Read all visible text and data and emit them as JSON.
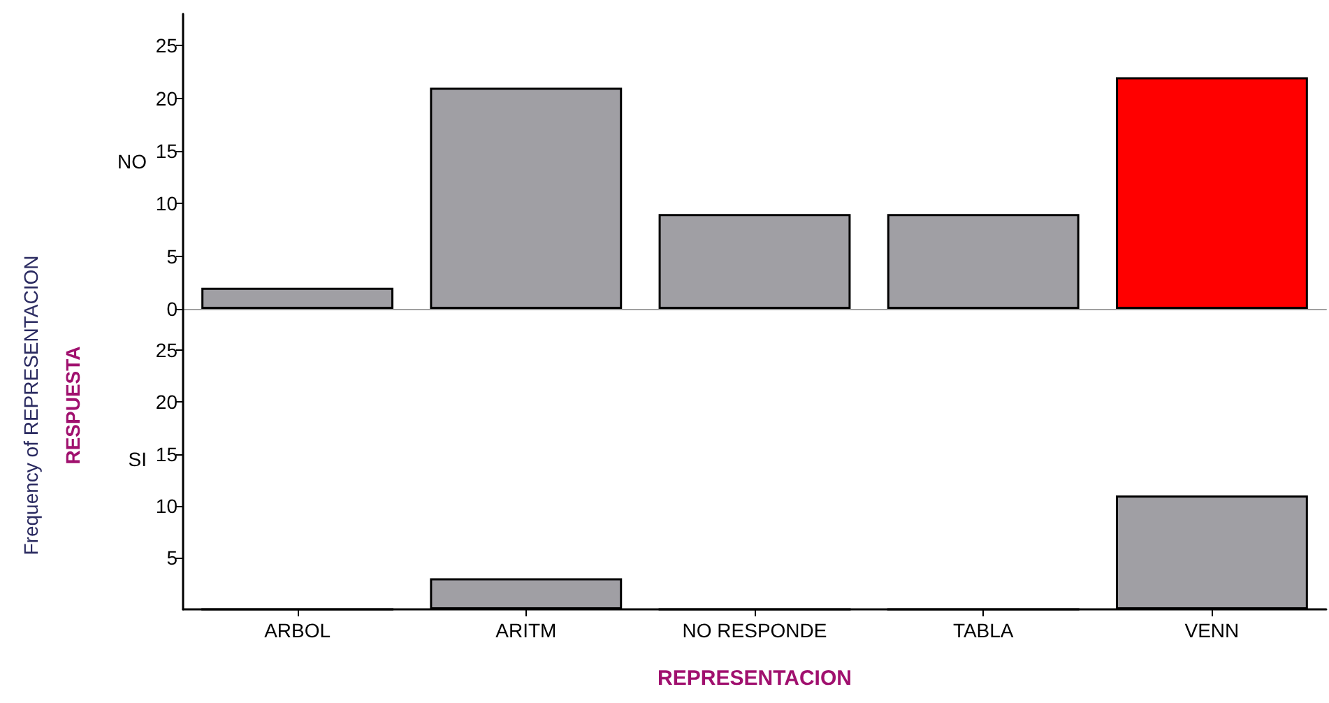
{
  "chart_data": [
    {
      "type": "bar",
      "ylabel": "NO",
      "categories": [
        null,
        null,
        null,
        null,
        null
      ],
      "values": [
        2,
        21,
        9,
        9,
        22
      ],
      "colors": [
        "#a09fa4",
        "#a09fa4",
        "#a09fa4",
        "#a09fa4",
        "#ff0000"
      ],
      "ylim": [
        0,
        28
      ],
      "yticks": [
        0,
        5,
        10,
        15,
        20,
        25
      ],
      "annotations": [
        "Frequency of REPRESENTACION",
        "RESPUESTA"
      ]
    },
    {
      "type": "bar",
      "ylabel": "SI",
      "xlabel": "REPRESENTACION",
      "categories": [
        "ARBOL",
        "ARITM",
        "NO RESPONDE",
        "TABLA",
        "VENN"
      ],
      "values": [
        0,
        3,
        0,
        0,
        11
      ],
      "colors": [
        "#a09fa4",
        "#a09fa4",
        "#a09fa4",
        "#a09fa4",
        "#a09fa4"
      ],
      "ylim": [
        0,
        29
      ],
      "yticks": [
        5,
        10,
        15,
        20,
        25
      ]
    }
  ]
}
